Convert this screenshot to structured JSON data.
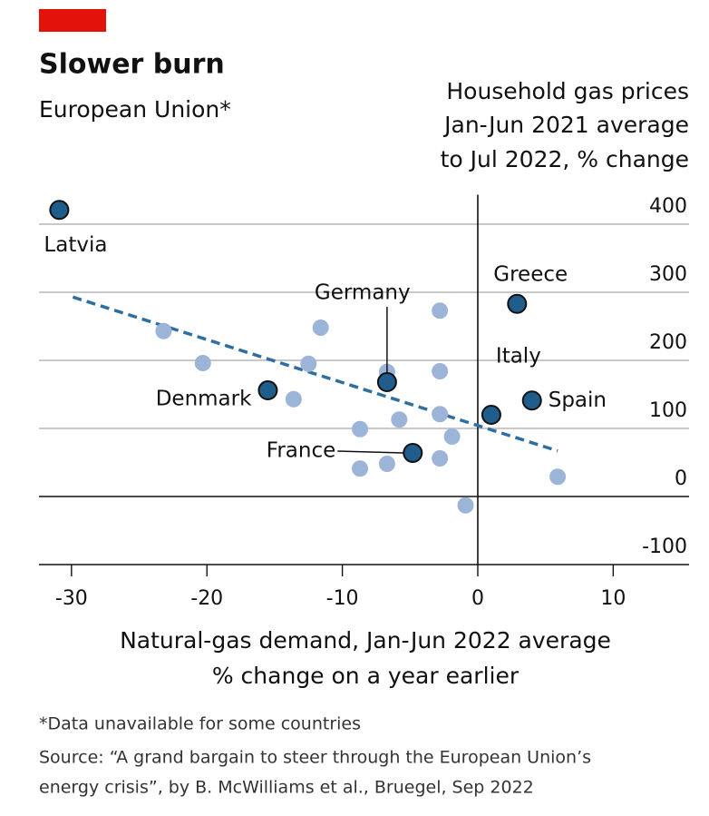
{
  "chart_data": {
    "type": "scatter",
    "title": "Slower burn",
    "subtitle": "European Union*",
    "y_label": [
      "Household gas prices",
      "Jan-Jun 2021 average",
      "to Jul 2022, % change"
    ],
    "x_label": [
      "Natural-gas demand, Jan-Jun 2022 average",
      "% change on a year earlier"
    ],
    "footnote": "*Data unavailable for some countries",
    "source": [
      "Source: “A grand bargain to steer through the European Union’s",
      "energy crisis”, by B. McWilliams et al., Bruegel, Sep 2022"
    ],
    "xlim": [
      -32.4,
      15.6
    ],
    "ylim": [
      -100,
      450
    ],
    "xticks": [
      -30,
      -20,
      -10,
      0,
      10
    ],
    "yticks": [
      -100,
      0,
      100,
      200,
      300,
      400
    ],
    "grid": true,
    "series": [
      {
        "color": "#9db4d9",
        "x": [
          -23.2,
          -11.6,
          -2.8,
          -20.3,
          -12.5,
          -6.7,
          -2.8,
          -13.6,
          -5.8,
          -2.8,
          -8.7,
          -1.9,
          -8.7,
          -6.7,
          -2.8,
          5.9,
          -0.9
        ],
        "values": [
          243,
          248,
          273,
          196,
          195,
          183,
          184,
          143,
          113,
          121,
          99,
          88,
          41,
          48,
          56,
          29,
          -13
        ]
      },
      {
        "color": "#1f5d8c",
        "labels": [
          "Latvia",
          "Greece",
          "Germany",
          "Denmark",
          "Italy",
          "Spain",
          "France"
        ],
        "x": [
          -30.9,
          2.9,
          -6.7,
          -15.5,
          1.0,
          4.0,
          -4.8
        ],
        "values": [
          421,
          283,
          168,
          156,
          120,
          141,
          64
        ]
      }
    ],
    "trend": {
      "color": "#2e6fa3",
      "x": [
        -29.9,
        5.9
      ],
      "values": [
        293,
        67
      ]
    }
  }
}
